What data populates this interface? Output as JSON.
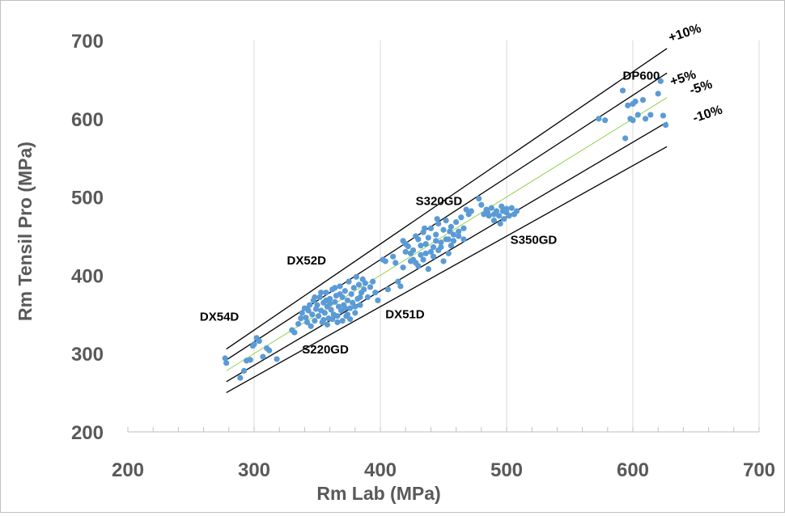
{
  "chart_data": {
    "type": "scatter",
    "xlabel": "Rm Lab (MPa)",
    "ylabel": "Rm Tensil Pro (MPa)",
    "xlim": [
      200,
      700
    ],
    "ylim": [
      200,
      700
    ],
    "x_ticks": [
      200,
      300,
      400,
      500,
      600,
      700
    ],
    "y_ticks": [
      200,
      300,
      400,
      500,
      600,
      700
    ],
    "x_tick_labels": [
      "200",
      "300",
      "400",
      "500",
      "600",
      "700"
    ],
    "y_tick_labels": [
      "200",
      "300",
      "400",
      "500",
      "600",
      "700"
    ],
    "x_minor_step": 20,
    "grid": "vertical major gridlines",
    "colors": {
      "points": "#5b9bd5",
      "identity_line": "#92d050",
      "band_lines": "#000000"
    },
    "reference_lines": {
      "x_range": [
        278,
        627
      ],
      "lines": [
        {
          "label": "+10%",
          "factor": 1.1
        },
        {
          "label": "+5%",
          "factor": 1.05
        },
        {
          "label": "",
          "factor": 1.0,
          "color": "#92d050"
        },
        {
          "label": "-5%",
          "factor": 0.95
        },
        {
          "label": "-10%",
          "factor": 0.9
        }
      ]
    },
    "annotations": [
      {
        "text": "DP600",
        "x": 592,
        "y": 650
      },
      {
        "text": "S320GD",
        "x": 428,
        "y": 490
      },
      {
        "text": "S350GD",
        "x": 503,
        "y": 440
      },
      {
        "text": "DX52D",
        "x": 326,
        "y": 414
      },
      {
        "text": "DX51D",
        "x": 404,
        "y": 345
      },
      {
        "text": "DX54D",
        "x": 257,
        "y": 342
      },
      {
        "text": "S220GD",
        "x": 338,
        "y": 300
      }
    ],
    "series": [
      {
        "name": "",
        "points": [
          [
            277,
            294
          ],
          [
            278,
            288
          ],
          [
            289,
            269
          ],
          [
            292,
            278
          ],
          [
            294,
            291
          ],
          [
            297,
            292
          ],
          [
            299,
            310
          ],
          [
            300,
            312
          ],
          [
            302,
            320
          ],
          [
            304,
            316
          ],
          [
            307,
            296
          ],
          [
            310,
            307
          ],
          [
            312,
            304
          ],
          [
            318,
            293
          ],
          [
            330,
            330
          ],
          [
            332,
            327
          ],
          [
            335,
            338
          ],
          [
            337,
            345
          ],
          [
            338,
            352
          ],
          [
            340,
            358
          ],
          [
            341,
            346
          ],
          [
            342,
            340
          ],
          [
            343,
            355
          ],
          [
            344,
            362
          ],
          [
            345,
            335
          ],
          [
            346,
            350
          ],
          [
            347,
            368
          ],
          [
            348,
            342
          ],
          [
            349,
            357
          ],
          [
            350,
            362
          ],
          [
            351,
            348
          ],
          [
            352,
            372
          ],
          [
            353,
            355
          ],
          [
            354,
            340
          ],
          [
            355,
            365
          ],
          [
            356,
            352
          ],
          [
            357,
            378
          ],
          [
            358,
            360
          ],
          [
            359,
            345
          ],
          [
            360,
            370
          ],
          [
            361,
            356
          ],
          [
            362,
            382
          ],
          [
            363,
            350
          ],
          [
            364,
            366
          ],
          [
            365,
            374
          ],
          [
            366,
            340
          ],
          [
            367,
            360
          ],
          [
            368,
            386
          ],
          [
            369,
            355
          ],
          [
            370,
            372
          ],
          [
            371,
            362
          ],
          [
            372,
            380
          ],
          [
            373,
            348
          ],
          [
            374,
            368
          ],
          [
            375,
            392
          ],
          [
            376,
            358
          ],
          [
            377,
            376
          ],
          [
            378,
            365
          ],
          [
            379,
            384
          ],
          [
            380,
            352
          ],
          [
            381,
            398
          ],
          [
            382,
            370
          ],
          [
            383,
            388
          ],
          [
            384,
            362
          ],
          [
            385,
            378
          ],
          [
            386,
            395
          ],
          [
            387,
            382
          ],
          [
            388,
            390
          ],
          [
            390,
            372
          ],
          [
            392,
            385
          ],
          [
            394,
            392
          ],
          [
            396,
            378
          ],
          [
            398,
            368
          ],
          [
            355,
            343
          ],
          [
            358,
            337
          ],
          [
            362,
            344
          ],
          [
            366,
            348
          ],
          [
            370,
            342
          ],
          [
            374,
            350
          ],
          [
            364,
            384
          ],
          [
            368,
            376
          ],
          [
            372,
            358
          ],
          [
            376,
            344
          ],
          [
            380,
            360
          ],
          [
            384,
            372
          ],
          [
            360,
            364
          ],
          [
            357,
            368
          ],
          [
            353,
            378
          ],
          [
            348,
            372
          ],
          [
            402,
            420
          ],
          [
            404,
            418
          ],
          [
            406,
            382
          ],
          [
            410,
            424
          ],
          [
            412,
            416
          ],
          [
            414,
            392
          ],
          [
            416,
            386
          ],
          [
            418,
            444
          ],
          [
            420,
            440
          ],
          [
            422,
            437
          ],
          [
            424,
            428
          ],
          [
            426,
            432
          ],
          [
            428,
            450
          ],
          [
            430,
            446
          ],
          [
            432,
            438
          ],
          [
            434,
            455
          ],
          [
            436,
            428
          ],
          [
            438,
            448
          ],
          [
            440,
            460
          ],
          [
            442,
            436
          ],
          [
            444,
            452
          ],
          [
            446,
            466
          ],
          [
            448,
            442
          ],
          [
            450,
            458
          ],
          [
            452,
            470
          ],
          [
            454,
            446
          ],
          [
            456,
            462
          ],
          [
            458,
            452
          ],
          [
            460,
            468
          ],
          [
            462,
            456
          ],
          [
            464,
            474
          ],
          [
            466,
            460
          ],
          [
            468,
            484
          ],
          [
            470,
            478
          ],
          [
            472,
            482
          ],
          [
            430,
            412
          ],
          [
            434,
            420
          ],
          [
            438,
            408
          ],
          [
            442,
            424
          ],
          [
            446,
            432
          ],
          [
            450,
            418
          ],
          [
            426,
            420
          ],
          [
            436,
            440
          ],
          [
            444,
            444
          ],
          [
            452,
            446
          ],
          [
            456,
            438
          ],
          [
            432,
            426
          ],
          [
            440,
            430
          ],
          [
            448,
            436
          ],
          [
            454,
            428
          ],
          [
            458,
            444
          ],
          [
            462,
            450
          ],
          [
            466,
            446
          ],
          [
            428,
            416
          ],
          [
            424,
            418
          ],
          [
            418,
            410
          ],
          [
            420,
            430
          ],
          [
            435,
            460
          ],
          [
            445,
            472
          ],
          [
            455,
            456
          ],
          [
            478,
            498
          ],
          [
            480,
            490
          ],
          [
            482,
            478
          ],
          [
            484,
            484
          ],
          [
            486,
            476
          ],
          [
            488,
            486
          ],
          [
            490,
            470
          ],
          [
            492,
            482
          ],
          [
            494,
            476
          ],
          [
            496,
            488
          ],
          [
            498,
            472
          ],
          [
            500,
            480
          ],
          [
            502,
            476
          ],
          [
            504,
            486
          ],
          [
            506,
            478
          ],
          [
            508,
            482
          ],
          [
            485,
            480
          ],
          [
            495,
            466
          ],
          [
            500,
            485
          ],
          [
            490,
            478
          ],
          [
            497,
            482
          ],
          [
            573,
            600
          ],
          [
            578,
            598
          ],
          [
            592,
            636
          ],
          [
            594,
            575
          ],
          [
            596,
            617
          ],
          [
            598,
            600
          ],
          [
            600,
            619
          ],
          [
            602,
            622
          ],
          [
            604,
            605
          ],
          [
            608,
            624
          ],
          [
            610,
            600
          ],
          [
            614,
            605
          ],
          [
            620,
            632
          ],
          [
            622,
            648
          ],
          [
            624,
            604
          ],
          [
            626,
            592
          ],
          [
            600,
            598
          ]
        ]
      }
    ]
  }
}
